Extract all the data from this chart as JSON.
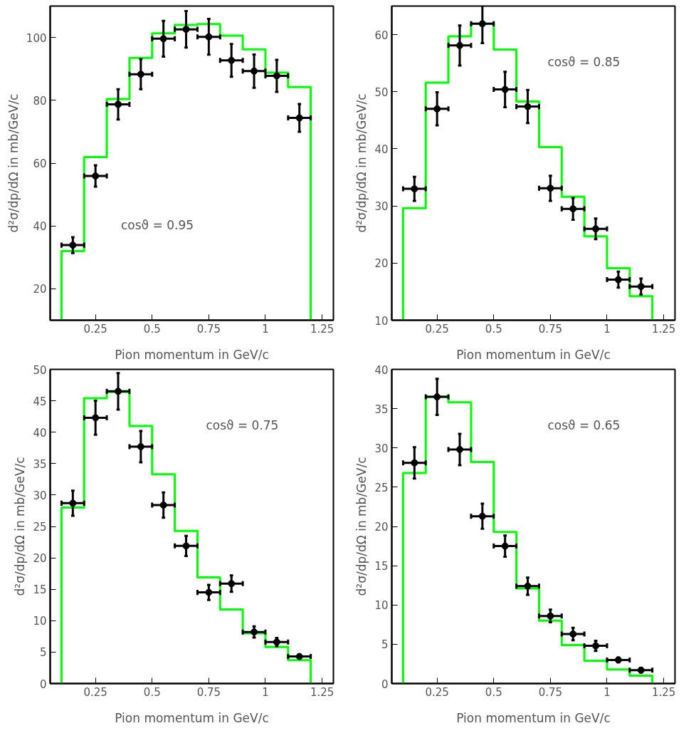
{
  "chart_data": [
    {
      "type": "scatter",
      "xlabel": "Pion momentum in GeV/c",
      "ylabel": "d²σ/dp/dΩ in mb/GeV/c",
      "annotations": [
        "cosϑ = 0.95"
      ],
      "xlim": [
        0.05,
        1.3
      ],
      "xticks": [
        0.25,
        0.5,
        0.75,
        1,
        1.25
      ],
      "ylim": [
        10,
        110
      ],
      "yticks": [
        20,
        40,
        60,
        80,
        100
      ],
      "grid": false,
      "marker": "circle",
      "series": [
        {
          "type": "histogram",
          "color": "#00ff00",
          "bins": [
            0.1,
            0.2,
            0.3,
            0.4,
            0.5,
            0.6,
            0.7,
            0.8,
            0.9,
            1.0,
            1.1,
            1.2
          ],
          "values": [
            32.0,
            61.9,
            80.4,
            93.5,
            101.3,
            104.0,
            104.3,
            100.6,
            96.2,
            88.8,
            84.2
          ]
        },
        {
          "color": "#000000",
          "x": [
            0.15,
            0.25,
            0.35,
            0.45,
            0.55,
            0.65,
            0.75,
            0.85,
            0.95,
            1.05,
            1.15
          ],
          "values": [
            33.9,
            55.9,
            78.7,
            88.3,
            99.6,
            102.6,
            100.2,
            92.7,
            89.3,
            87.8,
            74.4
          ],
          "errors": [
            2.5,
            3.4,
            4.8,
            4.8,
            5.7,
            5.8,
            5.7,
            5.2,
            5.3,
            5.1,
            4.4
          ],
          "xerrors": [
            0.05,
            0.05,
            0.05,
            0.05,
            0.05,
            0.05,
            0.05,
            0.05,
            0.05,
            0.05,
            0.05
          ]
        }
      ]
    },
    {
      "type": "scatter",
      "xlabel": "Pion momentum in GeV/c",
      "ylabel": "d²σ/dp/dΩ in mb/GeV/c",
      "annotations": [
        "cosϑ = 0.85"
      ],
      "xlim": [
        0.05,
        1.3
      ],
      "xticks": [
        0.25,
        0.5,
        0.75,
        1,
        1.25
      ],
      "ylim": [
        10,
        65
      ],
      "yticks": [
        10,
        20,
        30,
        40,
        50,
        60
      ],
      "grid": false,
      "marker": "circle",
      "series": [
        {
          "type": "histogram",
          "color": "#00ff00",
          "bins": [
            0.1,
            0.2,
            0.3,
            0.4,
            0.5,
            0.6,
            0.7,
            0.8,
            0.9,
            1.0,
            1.1,
            1.2
          ],
          "values": [
            29.6,
            51.6,
            59.7,
            61.9,
            57.4,
            48.3,
            40.3,
            31.6,
            24.7,
            19.1,
            14.2
          ]
        },
        {
          "color": "#000000",
          "x": [
            0.15,
            0.25,
            0.35,
            0.45,
            0.55,
            0.65,
            0.75,
            0.85,
            0.95,
            1.05,
            1.15
          ],
          "values": [
            33.0,
            47.0,
            58.1,
            61.9,
            50.4,
            47.4,
            33.1,
            29.5,
            26.0,
            17.1,
            15.9
          ],
          "errors": [
            2.1,
            2.9,
            3.5,
            3.4,
            3.1,
            2.9,
            2.2,
            1.9,
            1.8,
            1.4,
            1.4
          ],
          "xerrors": [
            0.05,
            0.05,
            0.05,
            0.05,
            0.05,
            0.05,
            0.05,
            0.05,
            0.05,
            0.05,
            0.05
          ]
        }
      ]
    },
    {
      "type": "scatter",
      "xlabel": "Pion momentum in GeV/c",
      "ylabel": "d²σ/dp/dΩ in mb/GeV/c",
      "annotations": [
        "cosϑ = 0.75"
      ],
      "xlim": [
        0.05,
        1.3
      ],
      "xticks": [
        0.25,
        0.5,
        0.75,
        1,
        1.25
      ],
      "ylim": [
        0,
        50
      ],
      "yticks": [
        0,
        5,
        10,
        15,
        20,
        25,
        30,
        35,
        40,
        45,
        50
      ],
      "grid": false,
      "marker": "circle",
      "series": [
        {
          "type": "histogram",
          "color": "#00ff00",
          "bins": [
            0.1,
            0.2,
            0.3,
            0.4,
            0.5,
            0.6,
            0.7,
            0.8,
            0.9,
            1.0,
            1.1,
            1.2
          ],
          "values": [
            28.0,
            45.4,
            46.4,
            41.0,
            33.3,
            24.3,
            16.9,
            11.8,
            8.0,
            5.8,
            3.7
          ]
        },
        {
          "color": "#000000",
          "x": [
            0.15,
            0.25,
            0.35,
            0.45,
            0.55,
            0.65,
            0.75,
            0.85,
            0.95,
            1.05,
            1.15
          ],
          "values": [
            28.7,
            42.3,
            46.5,
            37.7,
            28.4,
            21.9,
            14.5,
            15.9,
            8.2,
            6.6,
            4.3
          ],
          "errors": [
            2.0,
            2.7,
            2.9,
            2.5,
            2.0,
            1.6,
            1.2,
            1.3,
            0.9,
            0.65,
            0.3
          ],
          "xerrors": [
            0.05,
            0.05,
            0.05,
            0.05,
            0.05,
            0.05,
            0.05,
            0.05,
            0.05,
            0.05,
            0.05
          ]
        }
      ]
    },
    {
      "type": "scatter",
      "xlabel": "Pion momentum in GeV/c",
      "ylabel": "d²σ/dp/dΩ in mb/GeV/c",
      "annotations": [
        "cosϑ = 0.65"
      ],
      "xlim": [
        0.05,
        1.3
      ],
      "xticks": [
        0.25,
        0.5,
        0.75,
        1,
        1.25
      ],
      "ylim": [
        0,
        40
      ],
      "yticks": [
        0,
        5,
        10,
        15,
        20,
        25,
        30,
        35,
        40
      ],
      "grid": false,
      "marker": "circle",
      "series": [
        {
          "type": "histogram",
          "color": "#00ff00",
          "bins": [
            0.1,
            0.2,
            0.3,
            0.4,
            0.5,
            0.6,
            0.7,
            0.8,
            0.9,
            1.0,
            1.1,
            1.2
          ],
          "values": [
            26.8,
            36.5,
            35.8,
            28.2,
            19.3,
            12.1,
            8.0,
            4.9,
            2.9,
            1.8,
            1.0
          ]
        },
        {
          "color": "#000000",
          "x": [
            0.15,
            0.25,
            0.35,
            0.45,
            0.55,
            0.65,
            0.75,
            0.85,
            0.95,
            1.05,
            1.15
          ],
          "values": [
            28.1,
            36.5,
            29.8,
            21.3,
            17.5,
            12.4,
            8.6,
            6.3,
            4.8,
            3.0,
            1.7
          ],
          "errors": [
            2.0,
            2.3,
            2.0,
            1.6,
            1.35,
            1.1,
            0.8,
            0.8,
            0.65,
            0.3,
            0.3
          ],
          "xerrors": [
            0.05,
            0.05,
            0.05,
            0.05,
            0.05,
            0.05,
            0.05,
            0.05,
            0.05,
            0.05,
            0.05
          ]
        }
      ]
    }
  ]
}
